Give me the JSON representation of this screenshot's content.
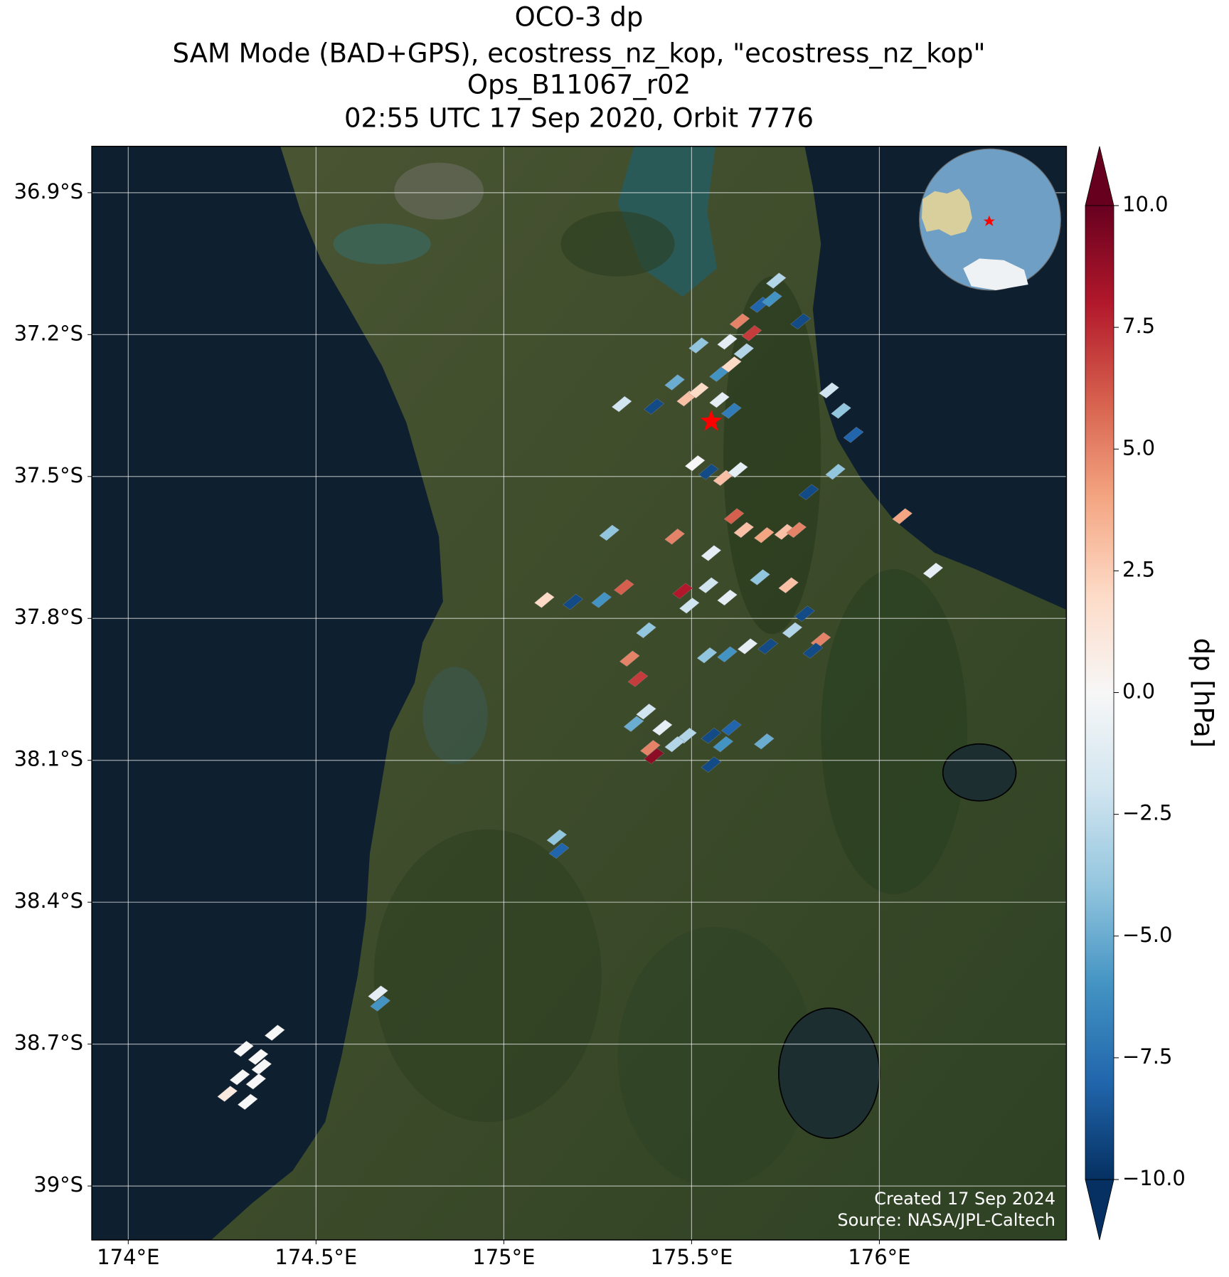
{
  "chart_data": {
    "type": "map",
    "title": [
      "OCO-3 dp",
      "SAM Mode (BAD+GPS), ecostress_nz_kop, \"ecostress_nz_kop\"",
      "Ops_B11067_r02",
      "02:55 UTC 17 Sep 2020, Orbit 7776"
    ],
    "xlim": [
      173.903,
      176.498
    ],
    "ylim": [
      -39.114,
      -36.802
    ],
    "xticks": [
      {
        "value": 174,
        "label": "174°E"
      },
      {
        "value": 174.5,
        "label": "174.5°E"
      },
      {
        "value": 175,
        "label": "175°E"
      },
      {
        "value": 175.5,
        "label": "175.5°E"
      },
      {
        "value": 176,
        "label": "176°E"
      }
    ],
    "yticks": [
      {
        "value": -36.9,
        "label": "36.9°S"
      },
      {
        "value": -37.2,
        "label": "37.2°S"
      },
      {
        "value": -37.5,
        "label": "37.5°S"
      },
      {
        "value": -37.8,
        "label": "37.8°S"
      },
      {
        "value": -38.1,
        "label": "38.1°S"
      },
      {
        "value": -38.4,
        "label": "38.4°S"
      },
      {
        "value": -38.7,
        "label": "38.7°S"
      },
      {
        "value": -39,
        "label": "39°S"
      }
    ],
    "grid": true,
    "x": [
      175.725,
      175.682,
      175.628,
      175.66,
      175.595,
      175.639,
      175.714,
      175.79,
      175.519,
      175.574,
      175.606,
      175.455,
      175.487,
      175.519,
      175.4,
      175.574,
      175.606,
      175.314,
      175.866,
      175.898,
      175.931,
      175.509,
      175.545,
      175.584,
      175.623,
      175.883,
      175.812,
      175.639,
      175.693,
      175.747,
      175.779,
      175.613,
      175.455,
      175.552,
      175.281,
      176.061,
      175.476,
      175.494,
      175.545,
      175.595,
      175.682,
      175.758,
      175.32,
      175.108,
      175.184,
      175.26,
      176.143,
      175.379,
      175.335,
      175.357,
      175.801,
      175.768,
      175.703,
      175.649,
      175.595,
      175.541,
      175.844,
      175.823,
      175.379,
      175.346,
      175.422,
      175.487,
      175.552,
      175.606,
      175.39,
      175.455,
      175.584,
      175.693,
      175.4,
      175.552,
      175.141,
      175.147,
      174.665,
      174.671,
      174.39,
      174.307,
      174.346,
      174.355,
      174.297,
      174.34,
      174.264,
      174.318
    ],
    "y": [
      -37.086,
      -37.137,
      -37.172,
      -37.197,
      -37.215,
      -37.235,
      -37.125,
      -37.172,
      -37.223,
      -37.283,
      -37.263,
      -37.301,
      -37.335,
      -37.318,
      -37.352,
      -37.338,
      -37.361,
      -37.347,
      -37.318,
      -37.361,
      -37.412,
      -37.472,
      -37.49,
      -37.503,
      -37.486,
      -37.49,
      -37.533,
      -37.613,
      -37.624,
      -37.617,
      -37.613,
      -37.584,
      -37.627,
      -37.662,
      -37.619,
      -37.584,
      -37.742,
      -37.773,
      -37.73,
      -37.756,
      -37.713,
      -37.73,
      -37.734,
      -37.761,
      -37.765,
      -37.761,
      -37.699,
      -37.825,
      -37.885,
      -37.928,
      -37.79,
      -37.825,
      -37.859,
      -37.859,
      -37.876,
      -37.878,
      -37.846,
      -37.868,
      -37.997,
      -38.023,
      -38.031,
      -38.048,
      -38.048,
      -38.031,
      -38.074,
      -38.066,
      -38.066,
      -38.06,
      -38.091,
      -38.109,
      -38.263,
      -38.291,
      -38.593,
      -38.614,
      -38.676,
      -38.71,
      -38.727,
      -38.748,
      -38.77,
      -38.779,
      -38.805,
      -38.822
    ],
    "values": [
      -3,
      -8,
      5,
      7,
      -1,
      -3,
      -6,
      -9,
      -4,
      -6,
      2,
      -5,
      3,
      2,
      -9,
      -1,
      -7,
      -2,
      -2,
      -4,
      -8,
      0,
      -9,
      3,
      -1,
      -4,
      -9,
      3,
      4,
      3,
      5,
      6,
      5,
      -1,
      -4,
      4,
      8,
      -2,
      -2,
      -1,
      -4,
      3,
      6,
      2,
      -9,
      -6,
      -1,
      -4,
      5,
      7,
      -9,
      -3,
      -9,
      -1,
      -6,
      -4,
      5,
      -9,
      -2,
      -5,
      -1,
      -3,
      -9,
      -8,
      5,
      -3,
      -6,
      -5,
      9,
      -9,
      -4,
      -8,
      -1,
      -6,
      0,
      0,
      0,
      0,
      0,
      0,
      1,
      0
    ],
    "colorbar": {
      "label": "dp [hPa]",
      "clim": [
        -10,
        10
      ],
      "ticks": [
        {
          "value": 10,
          "label": "10.0"
        },
        7.5,
        {
          "value": 5,
          "label": "5.0"
        },
        2.5,
        {
          "value": 0,
          "label": "0.0"
        },
        {
          "value": -2.5,
          "label": "−2.5"
        },
        {
          "value": -5,
          "label": "−5.0"
        },
        {
          "value": -7.5,
          "label": "−7.5"
        },
        {
          "value": -10,
          "label": "−10.0"
        }
      ],
      "colormap": [
        "#053061",
        "#2166ac",
        "#4393c3",
        "#92c5de",
        "#d1e5f0",
        "#f7f7f7",
        "#fddbc7",
        "#f4a582",
        "#d6604d",
        "#b2182b",
        "#67001f"
      ]
    },
    "annotations": [
      "Created 17 Sep 2024",
      "Source: NASA/JPL-Caltech"
    ]
  }
}
